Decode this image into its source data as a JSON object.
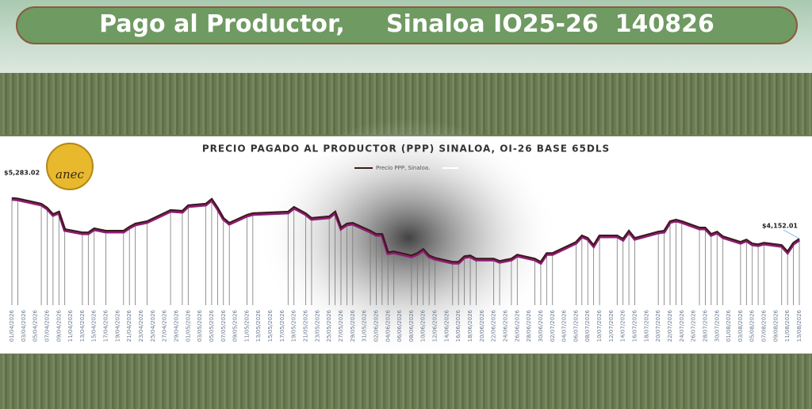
{
  "header": {
    "title": "Pago al Productor,     Sinaloa IO25-26  140826",
    "logo": "anec"
  },
  "chart_data": {
    "type": "line",
    "title": "PRECIO PAGADO AL PRODUCTOR (PPP) SINALOA, OI-26 BASE 65DLS",
    "x": [
      "01/04/2026",
      "02/04/2026",
      "06/04/2026",
      "07/04/2026",
      "08/04/2026",
      "09/04/2026",
      "10/04/2026",
      "13/04/2026",
      "14/04/2026",
      "15/04/2026",
      "17/04/2026",
      "20/04/2026",
      "21/04/2026",
      "22/04/2026",
      "24/04/2026",
      "28/04/2026",
      "30/04/2026",
      "01/05/2026",
      "04/05/2026",
      "05/05/2026",
      "06/05/2026",
      "07/05/2026",
      "08/05/2026",
      "11/05/2026",
      "12/05/2026",
      "18/05/2026",
      "19/05/2026",
      "21/05/2026",
      "22/05/2026",
      "25/05/2026",
      "26/05/2026",
      "27/05/2026",
      "28/05/2026",
      "29/05/2026",
      "01/06/2026",
      "02/06/2026",
      "03/06/2026",
      "04/06/2026",
      "05/06/2026",
      "08/06/2026",
      "09/06/2026",
      "10/06/2026",
      "11/06/2026",
      "12/06/2026",
      "15/06/2026",
      "16/06/2026",
      "17/06/2026",
      "18/06/2026",
      "19/06/2026",
      "22/06/2026",
      "23/06/2026",
      "25/06/2026",
      "26/06/2026",
      "29/06/2026",
      "30/06/2026",
      "01/07/2026",
      "02/07/2026",
      "06/07/2026",
      "07/07/2026",
      "08/07/2026",
      "09/07/2026",
      "10/07/2026",
      "13/07/2026",
      "14/07/2026",
      "15/07/2026",
      "16/07/2026",
      "20/07/2026",
      "21/07/2026",
      "22/07/2026",
      "23/07/2026",
      "24/07/2026",
      "27/07/2026",
      "28/07/2026",
      "29/07/2026",
      "30/07/2026",
      "31/07/2026",
      "03/08/2026",
      "04/08/2026",
      "05/08/2026",
      "06/08/2026",
      "07/08/2026",
      "10/08/2026",
      "11/08/2026",
      "12/08/2026",
      "13/08/2026"
    ],
    "series": [
      {
        "name": "Precio PPP, Sinaloa.",
        "color": "#3b1a1a",
        "shadow": "#8e1d74",
        "values": [
          5283.02,
          5270,
          5128,
          5017,
          4839,
          4906,
          4418,
          4329,
          4329,
          4440,
          4374,
          4374,
          4485,
          4573,
          4640,
          4950,
          4928,
          5083,
          5128,
          5261,
          5017,
          4729,
          4595,
          4817,
          4862,
          4906,
          5039,
          4862,
          4729,
          4773,
          4906,
          4462,
          4573,
          4595,
          4374,
          4285,
          4285,
          3775,
          3797,
          3686,
          3753,
          3864,
          3686,
          3619,
          3509,
          3509,
          3664,
          3686,
          3597,
          3597,
          3531,
          3597,
          3708,
          3597,
          3509,
          3753,
          3753,
          4063,
          4241,
          4174,
          3974,
          4241,
          4241,
          4152,
          4374,
          4174,
          4351,
          4374,
          4640,
          4684,
          4640,
          4462,
          4462,
          4285,
          4351,
          4218,
          4063,
          4130,
          4019,
          3997,
          4041,
          3974,
          3797,
          4041,
          4152.01
        ]
      }
    ],
    "annotations": [
      {
        "text": "$5,283.02",
        "x": "01/04/2026",
        "y": 5283.02
      },
      {
        "text": "$4,152.01",
        "x": "13/08/2026",
        "y": 4152.01
      }
    ],
    "xlim": [
      "01/04/2026",
      "13/08/2026"
    ],
    "xticks": [
      "01/04/2026",
      "03/04/2026",
      "05/04/2026",
      "07/04/2026",
      "09/04/2026",
      "11/04/2026",
      "13/04/2026",
      "15/04/2026",
      "17/04/2026",
      "19/04/2026",
      "21/04/2026",
      "23/04/2026",
      "25/04/2026",
      "27/04/2026",
      "29/04/2026",
      "01/05/2026",
      "03/05/2026",
      "05/05/2026",
      "07/05/2026",
      "09/05/2026",
      "11/05/2026",
      "13/05/2026",
      "15/05/2026",
      "17/05/2026",
      "19/05/2026",
      "21/05/2026",
      "23/05/2026",
      "25/05/2026",
      "27/05/2026",
      "29/05/2026",
      "31/05/2026",
      "02/06/2026",
      "04/06/2026",
      "06/06/2026",
      "08/06/2026",
      "10/06/2026",
      "12/06/2026",
      "14/06/2026",
      "16/06/2026",
      "18/06/2026",
      "20/06/2026",
      "22/06/2026",
      "24/06/2026",
      "26/06/2026",
      "28/06/2026",
      "30/06/2026",
      "02/07/2026",
      "04/07/2026",
      "06/07/2026",
      "08/07/2026",
      "10/07/2026",
      "12/07/2026",
      "14/07/2026",
      "16/07/2026",
      "18/07/2026",
      "20/07/2026",
      "22/07/2026",
      "24/07/2026",
      "26/07/2026",
      "28/07/2026",
      "30/07/2026",
      "01/08/2026",
      "03/08/2026",
      "05/08/2026",
      "07/08/2026",
      "09/08/2026",
      "11/08/2026",
      "13/08/2026"
    ],
    "ylim": [
      2300,
      5500
    ],
    "drop_lines": true
  }
}
